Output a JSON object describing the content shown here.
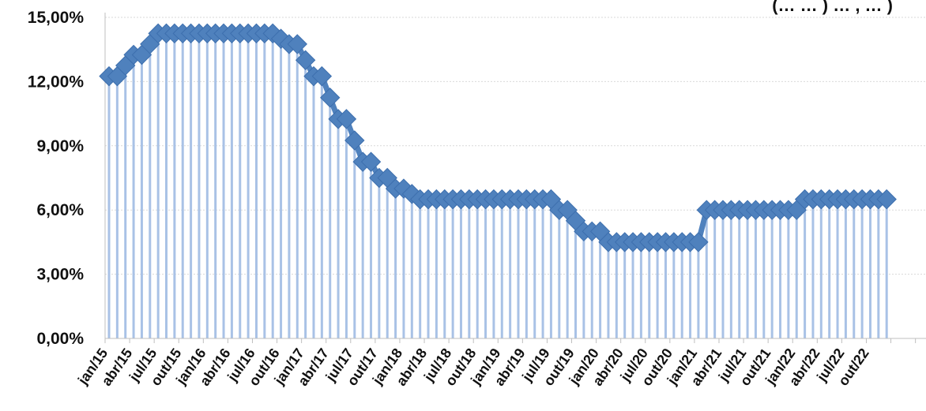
{
  "chart_data": {
    "type": "line",
    "title_fragment": "(… … ) … , … )",
    "ylim": [
      0,
      15
    ],
    "y_ticks": [
      "0,00%",
      "3,00%",
      "6,00%",
      "9,00%",
      "12,00%",
      "15,00%"
    ],
    "x_tick_labels": [
      "jan/15",
      "abr/15",
      "jul/15",
      "out/15",
      "jan/16",
      "abr/16",
      "jul/16",
      "out/16",
      "jan/17",
      "abr/17",
      "jul/17",
      "out/17",
      "jan/18",
      "abr/18",
      "jul/18",
      "out/18",
      "jan/19",
      "abr/19",
      "jul/19",
      "out/19",
      "jan/20",
      "abr/20",
      "jul/20",
      "out/20",
      "jan/21",
      "abr/21",
      "jul/21",
      "out/21",
      "jan/22",
      "abr/22",
      "jul/22",
      "out/22"
    ],
    "grid": true,
    "legend": "none",
    "series": [
      {
        "x": [
          "jan/15",
          "fev/15",
          "mar/15",
          "abr/15",
          "mai/15",
          "jun/15",
          "jul/15",
          "ago/15",
          "set/15",
          "out/15",
          "nov/15",
          "dez/15",
          "jan/16",
          "fev/16",
          "mar/16",
          "abr/16",
          "mai/16",
          "jun/16",
          "jul/16",
          "ago/16",
          "set/16",
          "out/16",
          "nov/16",
          "dez/16",
          "jan/17",
          "fev/17",
          "mar/17",
          "abr/17",
          "mai/17",
          "jun/17",
          "jul/17",
          "ago/17",
          "set/17",
          "out/17",
          "nov/17",
          "dez/17",
          "jan/18",
          "fev/18",
          "mar/18",
          "abr/18",
          "mai/18",
          "jun/18",
          "jul/18",
          "ago/18",
          "set/18",
          "out/18",
          "nov/18",
          "dez/18",
          "jan/19",
          "fev/19",
          "mar/19",
          "abr/19",
          "mai/19",
          "jun/19",
          "jul/19",
          "ago/19",
          "set/19",
          "out/19",
          "nov/19",
          "dez/19",
          "jan/20",
          "fev/20",
          "mar/20",
          "abr/20",
          "mai/20",
          "jun/20",
          "jul/20",
          "ago/20",
          "set/20",
          "out/20",
          "nov/20",
          "dez/20",
          "jan/21",
          "fev/21",
          "mar/21",
          "abr/21",
          "mai/21",
          "jun/21",
          "jul/21",
          "ago/21",
          "set/21",
          "out/21",
          "nov/21",
          "dez/21",
          "jan/22",
          "fev/22",
          "mar/22",
          "abr/22",
          "mai/22",
          "jun/22",
          "jul/22",
          "ago/22",
          "set/22",
          "out/22",
          "nov/22",
          "dez/22"
        ],
        "values": [
          12.25,
          12.25,
          12.75,
          13.25,
          13.25,
          13.75,
          14.25,
          14.25,
          14.25,
          14.25,
          14.25,
          14.25,
          14.25,
          14.25,
          14.25,
          14.25,
          14.25,
          14.25,
          14.25,
          14.25,
          14.25,
          14.0,
          13.75,
          13.75,
          13.0,
          12.25,
          12.25,
          11.25,
          10.25,
          10.25,
          9.25,
          8.25,
          8.25,
          7.5,
          7.5,
          7.0,
          7.0,
          6.75,
          6.5,
          6.5,
          6.5,
          6.5,
          6.5,
          6.5,
          6.5,
          6.5,
          6.5,
          6.5,
          6.5,
          6.5,
          6.5,
          6.5,
          6.5,
          6.5,
          6.5,
          6.0,
          6.0,
          5.5,
          5.0,
          5.0,
          5.0,
          4.5,
          4.5,
          4.5,
          4.5,
          4.5,
          4.5,
          4.5,
          4.5,
          4.5,
          4.5,
          4.5,
          4.5,
          6.0,
          6.0,
          6.0,
          6.0,
          6.0,
          6.0,
          6.0,
          6.0,
          6.0,
          6.0,
          6.0,
          6.0,
          6.5,
          6.5,
          6.5,
          6.5,
          6.5,
          6.5,
          6.5,
          6.5,
          6.5,
          6.5,
          6.5
        ]
      }
    ],
    "colors": {
      "line": "#4f81bd",
      "marker": "#4f81bd",
      "drop_line": "#a9c2e6",
      "grid": "#d9d9d9",
      "axis": "#bfbfbf",
      "text": "#111111"
    }
  }
}
